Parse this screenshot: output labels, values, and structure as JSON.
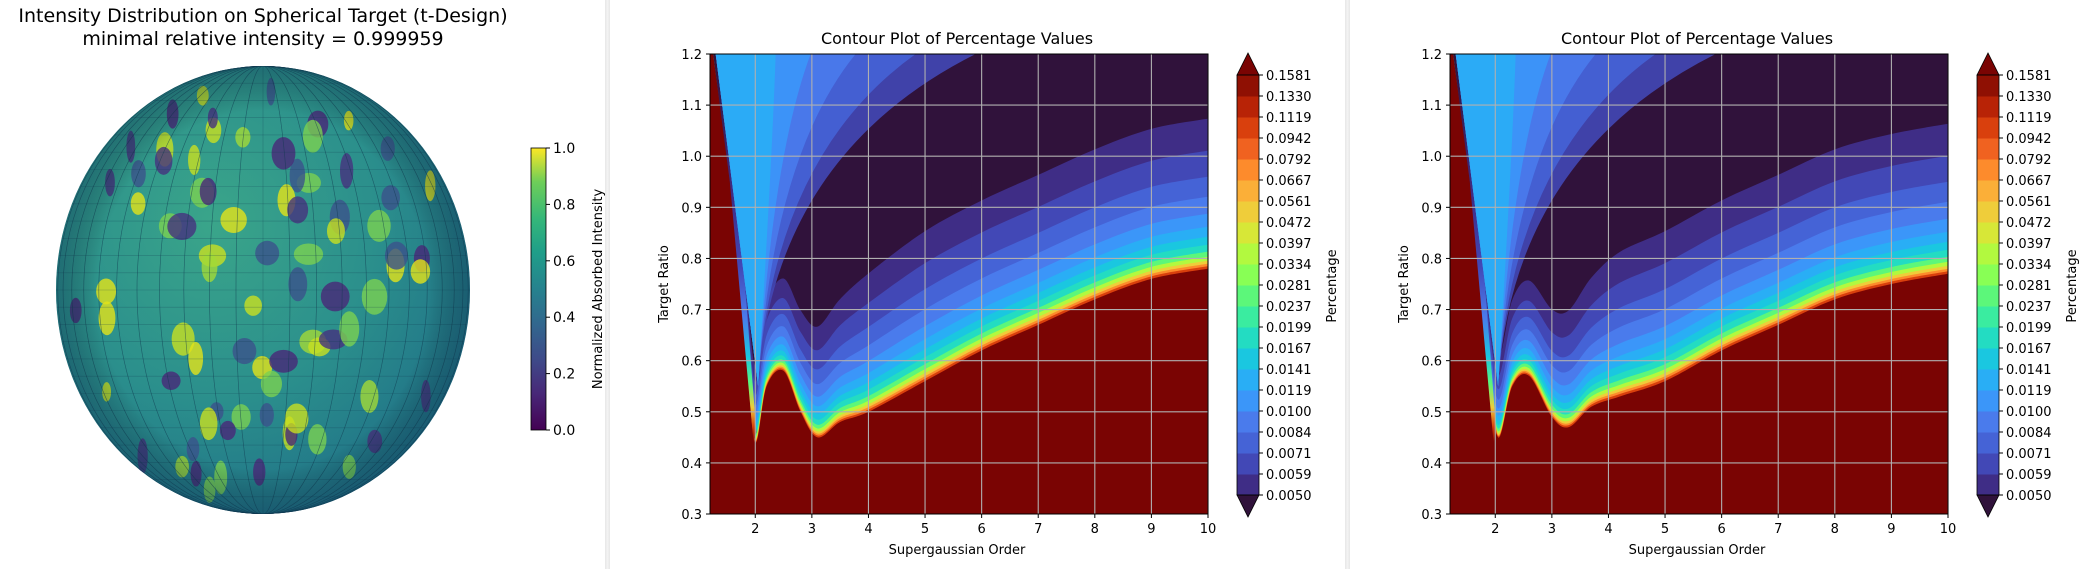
{
  "chart_data": [
    {
      "type": "surface",
      "title": "Intensity Distribution on Spherical Target (t-Design)",
      "subtitle": "minimal relative intensity = 0.999959",
      "colorbar": {
        "label": "Normalized Absorbed Intensity",
        "ticks": [
          "0.0",
          "0.2",
          "0.4",
          "0.6",
          "0.8",
          "1.0"
        ],
        "range": [
          0.0,
          1.0
        ],
        "colormap": "viridis"
      }
    },
    {
      "type": "heatmap",
      "subtype": "filled contour",
      "title": "Contour Plot of Percentage Values",
      "xlabel": "Supergaussian Order",
      "ylabel": "Target Ratio",
      "xlim": [
        1.2,
        10
      ],
      "ylim": [
        0.3,
        1.2
      ],
      "xticks": [
        "2",
        "3",
        "4",
        "5",
        "6",
        "7",
        "8",
        "9",
        "10"
      ],
      "yticks": [
        "0.3",
        "0.4",
        "0.5",
        "0.6",
        "0.7",
        "0.8",
        "0.9",
        "1.0",
        "1.1",
        "1.2"
      ],
      "grid": true,
      "colorbar": {
        "label": "Percentage",
        "levels": [
          "0.0050",
          "0.0059",
          "0.0071",
          "0.0084",
          "0.0100",
          "0.0119",
          "0.0141",
          "0.0167",
          "0.0199",
          "0.0237",
          "0.0281",
          "0.0334",
          "0.0397",
          "0.0472",
          "0.0561",
          "0.0667",
          "0.0792",
          "0.0942",
          "0.1119",
          "0.1330",
          "0.1581"
        ],
        "extend": "both",
        "colormap": "turbo"
      },
      "minimum_curve": [
        [
          1.25,
          1.2
        ],
        [
          1.5,
          1.0
        ],
        [
          1.7,
          0.8
        ],
        [
          1.85,
          0.6
        ],
        [
          2.0,
          0.44
        ],
        [
          2.2,
          0.55
        ],
        [
          2.5,
          0.58
        ],
        [
          2.8,
          0.5
        ],
        [
          3.1,
          0.45
        ],
        [
          3.5,
          0.48
        ],
        [
          4.0,
          0.5
        ],
        [
          5.0,
          0.56
        ],
        [
          6.0,
          0.62
        ],
        [
          7.0,
          0.67
        ],
        [
          8.0,
          0.72
        ],
        [
          9.0,
          0.76
        ],
        [
          10.0,
          0.78
        ]
      ]
    },
    {
      "type": "heatmap",
      "subtype": "filled contour",
      "title": "Contour Plot of Percentage Values",
      "xlabel": "Supergaussian Order",
      "ylabel": "Target Ratio",
      "xlim": [
        1.2,
        10
      ],
      "ylim": [
        0.3,
        1.2
      ],
      "xticks": [
        "2",
        "3",
        "4",
        "5",
        "6",
        "7",
        "8",
        "9",
        "10"
      ],
      "yticks": [
        "0.3",
        "0.4",
        "0.5",
        "0.6",
        "0.7",
        "0.8",
        "0.9",
        "1.0",
        "1.1",
        "1.2"
      ],
      "grid": true,
      "colorbar": {
        "label": "Percentage",
        "levels": [
          "0.0050",
          "0.0059",
          "0.0071",
          "0.0084",
          "0.0100",
          "0.0119",
          "0.0141",
          "0.0167",
          "0.0199",
          "0.0237",
          "0.0281",
          "0.0334",
          "0.0397",
          "0.0472",
          "0.0561",
          "0.0667",
          "0.0792",
          "0.0942",
          "0.1119",
          "0.1330",
          "0.1581"
        ],
        "extend": "both",
        "colormap": "turbo"
      },
      "minimum_curve": [
        [
          1.25,
          1.2
        ],
        [
          1.5,
          1.0
        ],
        [
          1.7,
          0.8
        ],
        [
          1.85,
          0.6
        ],
        [
          2.05,
          0.45
        ],
        [
          2.3,
          0.55
        ],
        [
          2.6,
          0.57
        ],
        [
          3.0,
          0.49
        ],
        [
          3.3,
          0.47
        ],
        [
          3.7,
          0.51
        ],
        [
          4.2,
          0.53
        ],
        [
          5.0,
          0.56
        ],
        [
          6.0,
          0.62
        ],
        [
          7.0,
          0.67
        ],
        [
          8.0,
          0.72
        ],
        [
          9.0,
          0.75
        ],
        [
          10.0,
          0.77
        ]
      ]
    }
  ]
}
